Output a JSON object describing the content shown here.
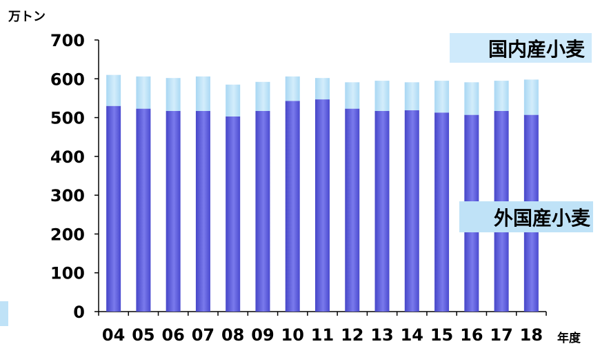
{
  "chart_data": {
    "type": "bar",
    "stacked": true,
    "y_unit": "万トン",
    "x_unit": "年度",
    "ylim": [
      0,
      700
    ],
    "yticks": [
      0,
      100,
      200,
      300,
      400,
      500,
      600,
      700
    ],
    "categories": [
      "04",
      "05",
      "06",
      "07",
      "08",
      "09",
      "10",
      "11",
      "12",
      "13",
      "14",
      "15",
      "16",
      "17",
      "18"
    ],
    "series": [
      {
        "name": "外国産小麦",
        "values": [
          530,
          523,
          517,
          517,
          503,
          517,
          543,
          547,
          523,
          517,
          519,
          513,
          507,
          517,
          507
        ],
        "color": "#5B5BDB"
      },
      {
        "name": "国内産小麦",
        "values": [
          80,
          83,
          85,
          89,
          82,
          75,
          63,
          55,
          68,
          78,
          72,
          82,
          84,
          78,
          91
        ],
        "color": "#BDE3F8"
      }
    ],
    "legend_labels_inline": true
  },
  "colors": {
    "foreign_bar": "#5B5BDB",
    "foreign_bar_highlight": "#9090F2",
    "domestic_bar": "#BDE3F8",
    "legend_box_domestic": "#CFEAFB",
    "legend_box_foreign": "#BFE2F7"
  }
}
